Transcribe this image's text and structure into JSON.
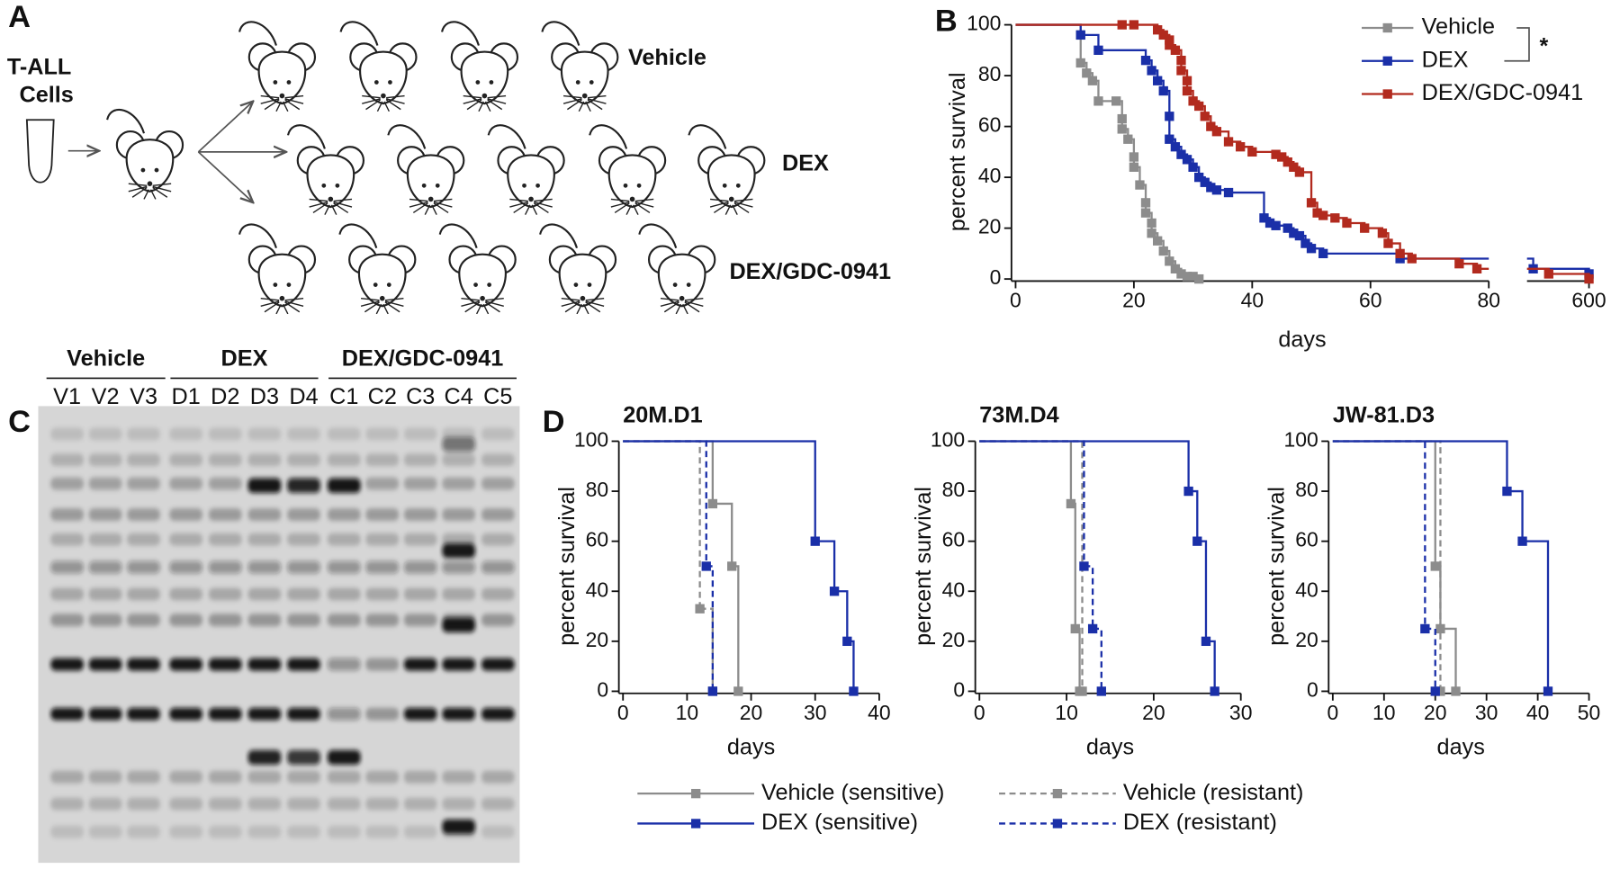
{
  "panel_labels": [
    "A",
    "B",
    "C",
    "D"
  ],
  "diagram": {
    "source_label": [
      "T-ALL",
      "Cells"
    ],
    "groups": [
      "Vehicle",
      "DEX",
      "DEX/GDC-0941"
    ]
  },
  "gel": {
    "groups": [
      {
        "name": "Vehicle",
        "lanes": [
          "V1",
          "V2",
          "V3"
        ]
      },
      {
        "name": "DEX",
        "lanes": [
          "D1",
          "D2",
          "D3",
          "D4"
        ]
      },
      {
        "name": "DEX/GDC-0941",
        "lanes": [
          "C1",
          "C2",
          "C3",
          "C4",
          "C5"
        ]
      }
    ]
  },
  "chart_data": [
    {
      "type": "line",
      "step": true,
      "xlabel": "days",
      "ylabel": "percent survival",
      "annotation": "*",
      "xlim": [
        [
          0,
          80
        ],
        [
          580,
          600
        ]
      ],
      "xticks": [
        0,
        20,
        40,
        60,
        80,
        600
      ],
      "ylim": [
        0,
        100
      ],
      "yticks": [
        0,
        20,
        40,
        60,
        80,
        100
      ],
      "series": [
        {
          "name": "Vehicle",
          "color": "#8c8c8c",
          "dashed": false,
          "x": [
            0,
            11,
            11,
            12,
            13,
            14,
            17,
            18,
            18,
            19,
            20,
            20,
            21,
            22,
            22,
            23,
            23,
            24,
            25,
            26,
            27,
            28,
            29,
            30,
            31
          ],
          "values": [
            100,
            96,
            85,
            81,
            78,
            70,
            70,
            63,
            59,
            55,
            48,
            44,
            37,
            30,
            26,
            22,
            18,
            15,
            11,
            7,
            4,
            2,
            1,
            1,
            0
          ]
        },
        {
          "name": "DEX",
          "color": "#1a2fa8",
          "dashed": false,
          "x": [
            0,
            11,
            14,
            22,
            23,
            24,
            25,
            26,
            26,
            27,
            28,
            29,
            30,
            31,
            32,
            33,
            34,
            36,
            42,
            43,
            44,
            46,
            47,
            48,
            49,
            50,
            52,
            65,
            582,
            600
          ],
          "values": [
            100,
            96,
            90,
            86,
            82,
            78,
            74,
            64,
            55,
            52,
            49,
            47,
            44,
            40,
            38,
            36,
            35,
            34,
            24,
            22,
            21,
            20,
            18,
            17,
            14,
            12,
            10,
            8,
            4,
            2
          ]
        },
        {
          "name": "DEX/GDC-0941",
          "color": "#b22a1e",
          "dashed": false,
          "x": [
            0,
            18,
            20,
            24,
            25,
            26,
            26,
            27,
            28,
            28,
            29,
            29,
            30,
            31,
            32,
            33,
            34,
            36,
            38,
            40,
            44,
            45,
            46,
            47,
            48,
            50,
            51,
            52,
            54,
            56,
            59,
            62,
            63,
            65,
            67,
            75,
            78,
            587,
            600
          ],
          "values": [
            100,
            100,
            100,
            98,
            96,
            94,
            92,
            90,
            86,
            82,
            78,
            74,
            70,
            68,
            64,
            60,
            58,
            54,
            52,
            50,
            49,
            48,
            46,
            44,
            42,
            30,
            26,
            25,
            24,
            22,
            20,
            18,
            14,
            10,
            8,
            6,
            4,
            2,
            0
          ]
        }
      ]
    },
    {
      "type": "line",
      "step": true,
      "title": "20M.D1",
      "xlabel": "days",
      "ylabel": "percent survival",
      "xlim": [
        0,
        40
      ],
      "xticks": [
        0,
        10,
        20,
        30,
        40
      ],
      "ylim": [
        0,
        100
      ],
      "yticks": [
        0,
        20,
        40,
        60,
        80,
        100
      ],
      "series": [
        {
          "name": "Vehicle (sensitive)",
          "color": "#8c8c8c",
          "dashed": false,
          "x": [
            0,
            14,
            17,
            18
          ],
          "values": [
            100,
            75,
            50,
            0
          ]
        },
        {
          "name": "Vehicle (resistant)",
          "color": "#8c8c8c",
          "dashed": true,
          "x": [
            0,
            12,
            14
          ],
          "values": [
            100,
            33,
            0
          ]
        },
        {
          "name": "DEX (sensitive)",
          "color": "#1a2fa8",
          "dashed": false,
          "x": [
            0,
            30,
            33,
            35,
            36
          ],
          "values": [
            100,
            60,
            40,
            20,
            0
          ]
        },
        {
          "name": "DEX (resistant)",
          "color": "#1a2fa8",
          "dashed": true,
          "x": [
            0,
            13,
            14
          ],
          "values": [
            100,
            50,
            0
          ]
        }
      ]
    },
    {
      "type": "line",
      "step": true,
      "title": "73M.D4",
      "xlabel": "days",
      "ylabel": "percent survival",
      "xlim": [
        0,
        30
      ],
      "xticks": [
        0,
        10,
        20,
        30
      ],
      "ylim": [
        0,
        100
      ],
      "yticks": [
        0,
        20,
        40,
        60,
        80,
        100
      ],
      "series": [
        {
          "name": "Vehicle (sensitive)",
          "color": "#8c8c8c",
          "dashed": false,
          "x": [
            0,
            10.5,
            11,
            11.5
          ],
          "values": [
            100,
            75,
            25,
            0
          ]
        },
        {
          "name": "Vehicle (resistant)",
          "color": "#8c8c8c",
          "dashed": true,
          "x": [
            0,
            11.8
          ],
          "values": [
            100,
            0
          ]
        },
        {
          "name": "DEX (sensitive)",
          "color": "#1a2fa8",
          "dashed": false,
          "x": [
            0,
            24,
            25,
            26,
            27
          ],
          "values": [
            100,
            80,
            60,
            20,
            0
          ]
        },
        {
          "name": "DEX (resistant)",
          "color": "#1a2fa8",
          "dashed": true,
          "x": [
            0,
            12,
            13,
            14
          ],
          "values": [
            100,
            50,
            25,
            0
          ]
        }
      ]
    },
    {
      "type": "line",
      "step": true,
      "title": "JW-81.D3",
      "xlabel": "days",
      "ylabel": "percent survival",
      "xlim": [
        0,
        50
      ],
      "xticks": [
        0,
        10,
        20,
        30,
        40,
        50
      ],
      "ylim": [
        0,
        100
      ],
      "yticks": [
        0,
        20,
        40,
        60,
        80,
        100
      ],
      "series": [
        {
          "name": "Vehicle (sensitive)",
          "color": "#8c8c8c",
          "dashed": false,
          "x": [
            0,
            20,
            21,
            24
          ],
          "values": [
            100,
            50,
            25,
            0
          ]
        },
        {
          "name": "Vehicle (resistant)",
          "color": "#8c8c8c",
          "dashed": true,
          "x": [
            0,
            21
          ],
          "values": [
            100,
            0
          ]
        },
        {
          "name": "DEX (sensitive)",
          "color": "#1a2fa8",
          "dashed": false,
          "x": [
            0,
            34,
            37,
            42
          ],
          "values": [
            100,
            80,
            60,
            0
          ]
        },
        {
          "name": "DEX (resistant)",
          "color": "#1a2fa8",
          "dashed": true,
          "x": [
            0,
            18,
            20
          ],
          "values": [
            100,
            25,
            0
          ]
        }
      ]
    }
  ]
}
